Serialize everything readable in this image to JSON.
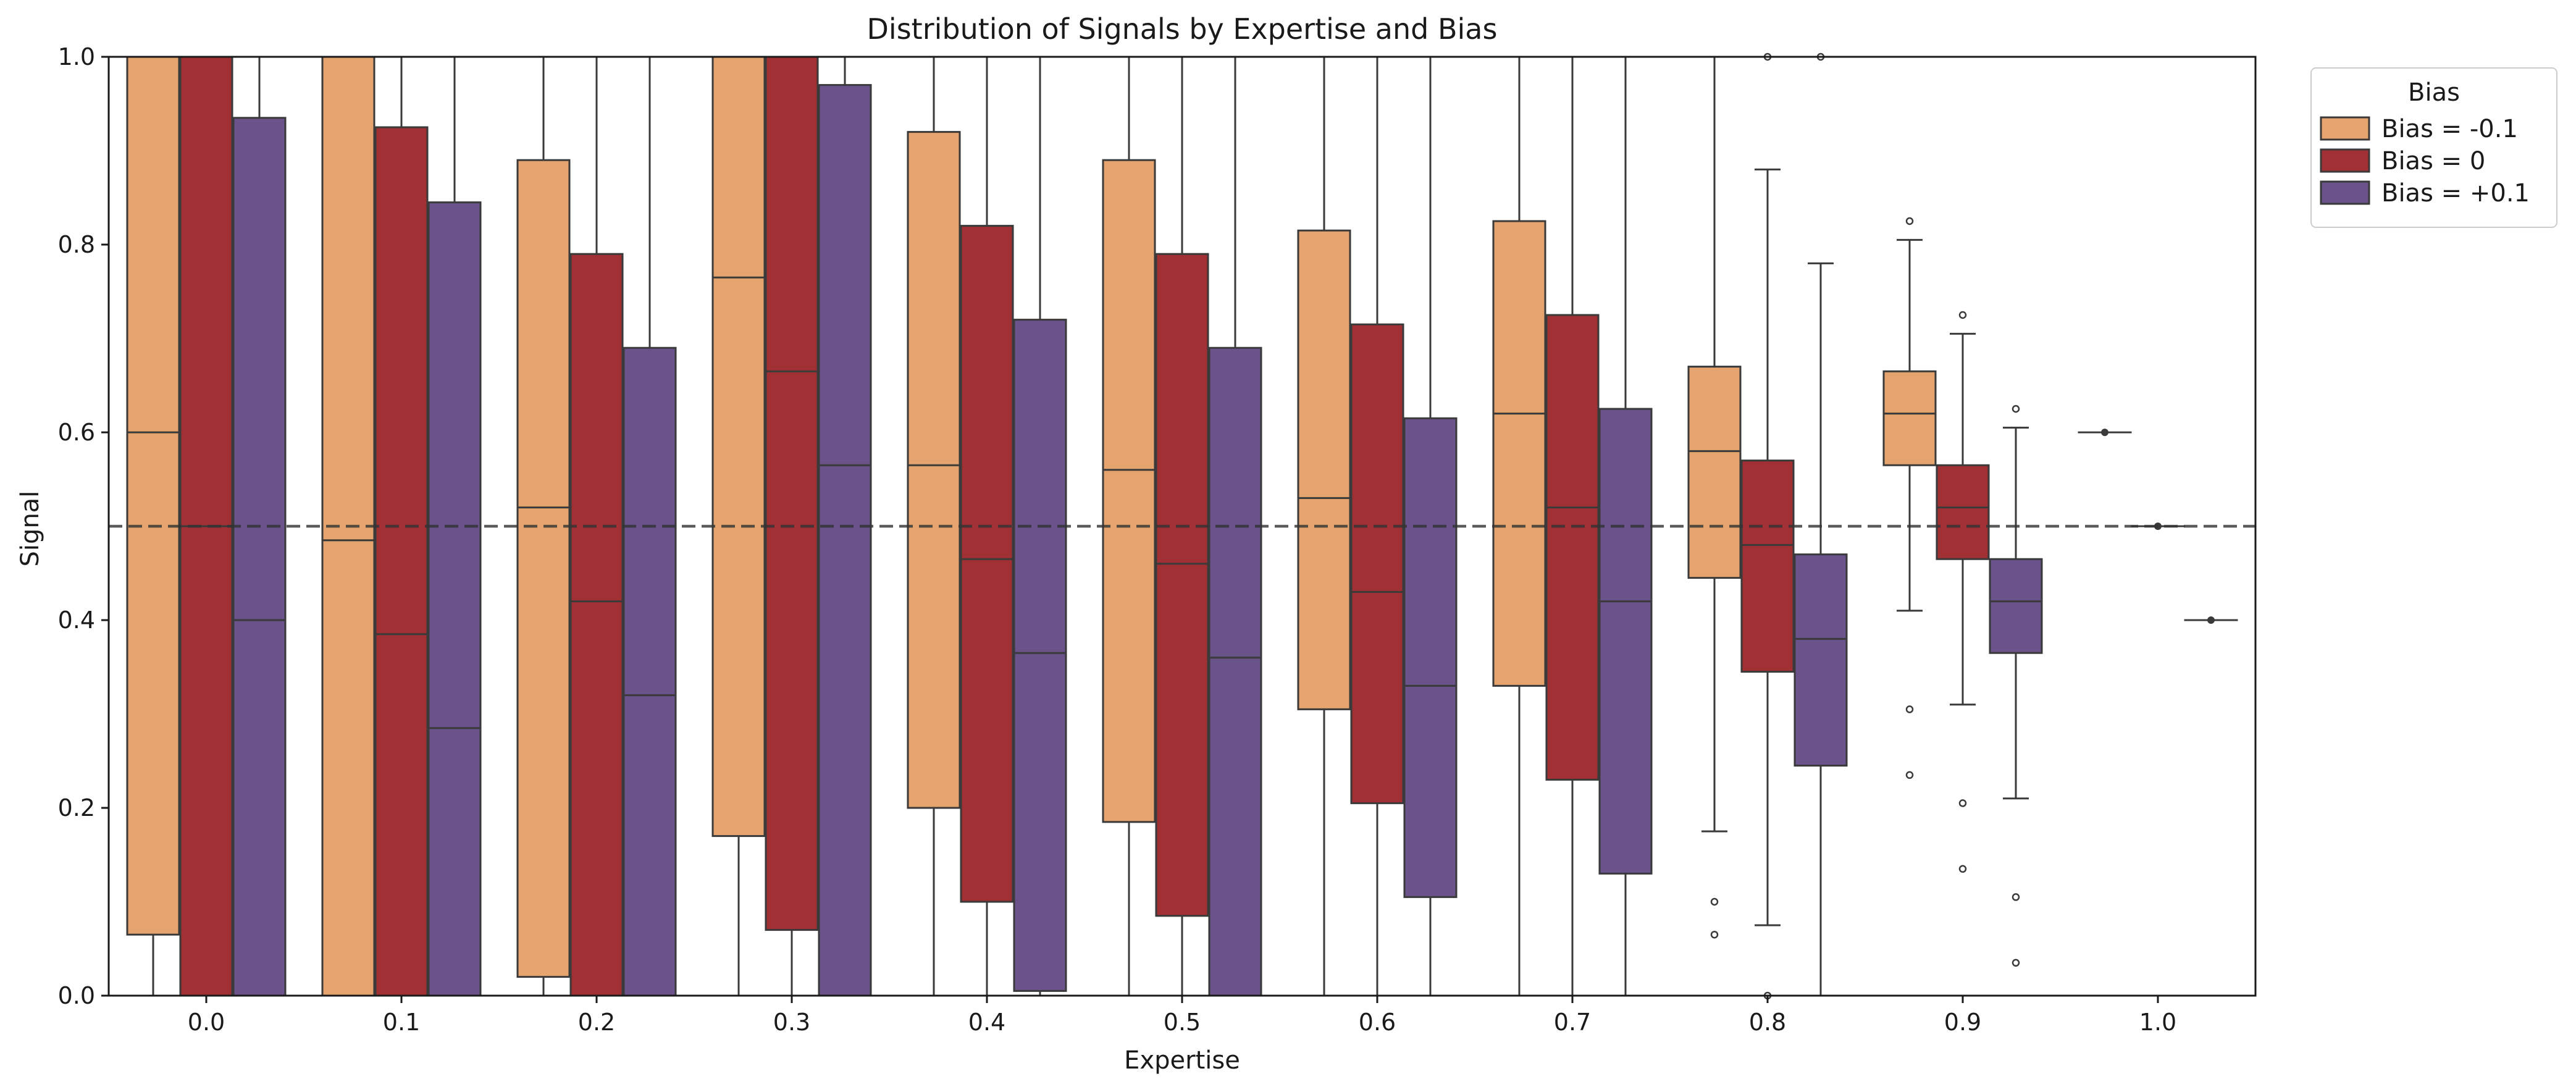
{
  "chart_data": {
    "type": "box",
    "title": "Distribution of Signals by Expertise and Bias",
    "xlabel": "Expertise",
    "ylabel": "Signal",
    "ylim": [
      0.0,
      1.0
    ],
    "yticks": [
      "0.0",
      "0.2",
      "0.4",
      "0.6",
      "0.8",
      "1.0"
    ],
    "categories": [
      "0.0",
      "0.1",
      "0.2",
      "0.3",
      "0.4",
      "0.5",
      "0.6",
      "0.7",
      "0.8",
      "0.9",
      "1.0"
    ],
    "reference_line": {
      "y": 0.5,
      "style": "dashed"
    },
    "legend": {
      "title": "Bias",
      "placement": "outside-top-right"
    },
    "series": [
      {
        "name": "Bias = -0.1",
        "color": "#E5A36D",
        "boxes": [
          {
            "q1": 0.065,
            "median": 0.6,
            "q3": 1.0,
            "whislo": 0.0,
            "whishi": 1.0,
            "fliers": []
          },
          {
            "q1": 0.0,
            "median": 0.485,
            "q3": 1.0,
            "whislo": 0.0,
            "whishi": 1.0,
            "fliers": []
          },
          {
            "q1": 0.02,
            "median": 0.52,
            "q3": 0.89,
            "whislo": 0.0,
            "whishi": 1.0,
            "fliers": []
          },
          {
            "q1": 0.17,
            "median": 0.765,
            "q3": 1.0,
            "whislo": 0.0,
            "whishi": 1.0,
            "fliers": []
          },
          {
            "q1": 0.2,
            "median": 0.565,
            "q3": 0.92,
            "whislo": 0.0,
            "whishi": 1.0,
            "fliers": []
          },
          {
            "q1": 0.185,
            "median": 0.56,
            "q3": 0.89,
            "whislo": 0.0,
            "whishi": 1.0,
            "fliers": []
          },
          {
            "q1": 0.305,
            "median": 0.53,
            "q3": 0.815,
            "whislo": 0.0,
            "whishi": 1.0,
            "fliers": []
          },
          {
            "q1": 0.33,
            "median": 0.62,
            "q3": 0.825,
            "whislo": 0.0,
            "whishi": 1.0,
            "fliers": []
          },
          {
            "q1": 0.445,
            "median": 0.58,
            "q3": 0.67,
            "whislo": 0.175,
            "whishi": 1.0,
            "fliers": [
              0.1,
              0.065
            ]
          },
          {
            "q1": 0.565,
            "median": 0.62,
            "q3": 0.665,
            "whislo": 0.41,
            "whishi": 0.805,
            "fliers": [
              0.825,
              0.305,
              0.235
            ]
          },
          {
            "q1": 0.6,
            "median": 0.6,
            "q3": 0.6,
            "whislo": 0.6,
            "whishi": 0.6,
            "fliers": []
          }
        ]
      },
      {
        "name": "Bias = 0",
        "color": "#A03034",
        "boxes": [
          {
            "q1": 0.0,
            "median": 0.5,
            "q3": 1.0,
            "whislo": 0.0,
            "whishi": 1.0,
            "fliers": []
          },
          {
            "q1": 0.0,
            "median": 0.385,
            "q3": 0.925,
            "whislo": 0.0,
            "whishi": 1.0,
            "fliers": []
          },
          {
            "q1": 0.0,
            "median": 0.42,
            "q3": 0.79,
            "whislo": 0.0,
            "whishi": 1.0,
            "fliers": []
          },
          {
            "q1": 0.07,
            "median": 0.665,
            "q3": 1.0,
            "whislo": 0.0,
            "whishi": 1.0,
            "fliers": []
          },
          {
            "q1": 0.1,
            "median": 0.465,
            "q3": 0.82,
            "whislo": 0.0,
            "whishi": 1.0,
            "fliers": []
          },
          {
            "q1": 0.085,
            "median": 0.46,
            "q3": 0.79,
            "whislo": 0.0,
            "whishi": 1.0,
            "fliers": []
          },
          {
            "q1": 0.205,
            "median": 0.43,
            "q3": 0.715,
            "whislo": 0.0,
            "whishi": 1.0,
            "fliers": []
          },
          {
            "q1": 0.23,
            "median": 0.52,
            "q3": 0.725,
            "whislo": 0.0,
            "whishi": 1.0,
            "fliers": []
          },
          {
            "q1": 0.345,
            "median": 0.48,
            "q3": 0.57,
            "whislo": 0.075,
            "whishi": 0.88,
            "fliers": [
              1.0,
              0.0
            ]
          },
          {
            "q1": 0.465,
            "median": 0.52,
            "q3": 0.565,
            "whislo": 0.31,
            "whishi": 0.705,
            "fliers": [
              0.725,
              0.205,
              0.135
            ]
          },
          {
            "q1": 0.5,
            "median": 0.5,
            "q3": 0.5,
            "whislo": 0.5,
            "whishi": 0.5,
            "fliers": []
          }
        ]
      },
      {
        "name": "Bias = +0.1",
        "color": "#6A528A",
        "boxes": [
          {
            "q1": 0.0,
            "median": 0.4,
            "q3": 0.935,
            "whislo": 0.0,
            "whishi": 1.0,
            "fliers": []
          },
          {
            "q1": 0.0,
            "median": 0.285,
            "q3": 0.845,
            "whislo": 0.0,
            "whishi": 1.0,
            "fliers": []
          },
          {
            "q1": 0.0,
            "median": 0.32,
            "q3": 0.69,
            "whislo": 0.0,
            "whishi": 1.0,
            "fliers": []
          },
          {
            "q1": 0.0,
            "median": 0.565,
            "q3": 0.97,
            "whislo": 0.0,
            "whishi": 1.0,
            "fliers": []
          },
          {
            "q1": 0.005,
            "median": 0.365,
            "q3": 0.72,
            "whislo": 0.0,
            "whishi": 1.0,
            "fliers": []
          },
          {
            "q1": 0.0,
            "median": 0.36,
            "q3": 0.69,
            "whislo": 0.0,
            "whishi": 1.0,
            "fliers": []
          },
          {
            "q1": 0.105,
            "median": 0.33,
            "q3": 0.615,
            "whislo": 0.0,
            "whishi": 1.0,
            "fliers": []
          },
          {
            "q1": 0.13,
            "median": 0.42,
            "q3": 0.625,
            "whislo": 0.0,
            "whishi": 1.0,
            "fliers": []
          },
          {
            "q1": 0.245,
            "median": 0.38,
            "q3": 0.47,
            "whislo": 0.0,
            "whishi": 0.78,
            "fliers": [
              1.0
            ]
          },
          {
            "q1": 0.365,
            "median": 0.42,
            "q3": 0.465,
            "whislo": 0.21,
            "whishi": 0.605,
            "fliers": [
              0.625,
              0.105,
              0.035
            ]
          },
          {
            "q1": 0.4,
            "median": 0.4,
            "q3": 0.4,
            "whislo": 0.4,
            "whishi": 0.4,
            "fliers": []
          }
        ]
      }
    ]
  }
}
